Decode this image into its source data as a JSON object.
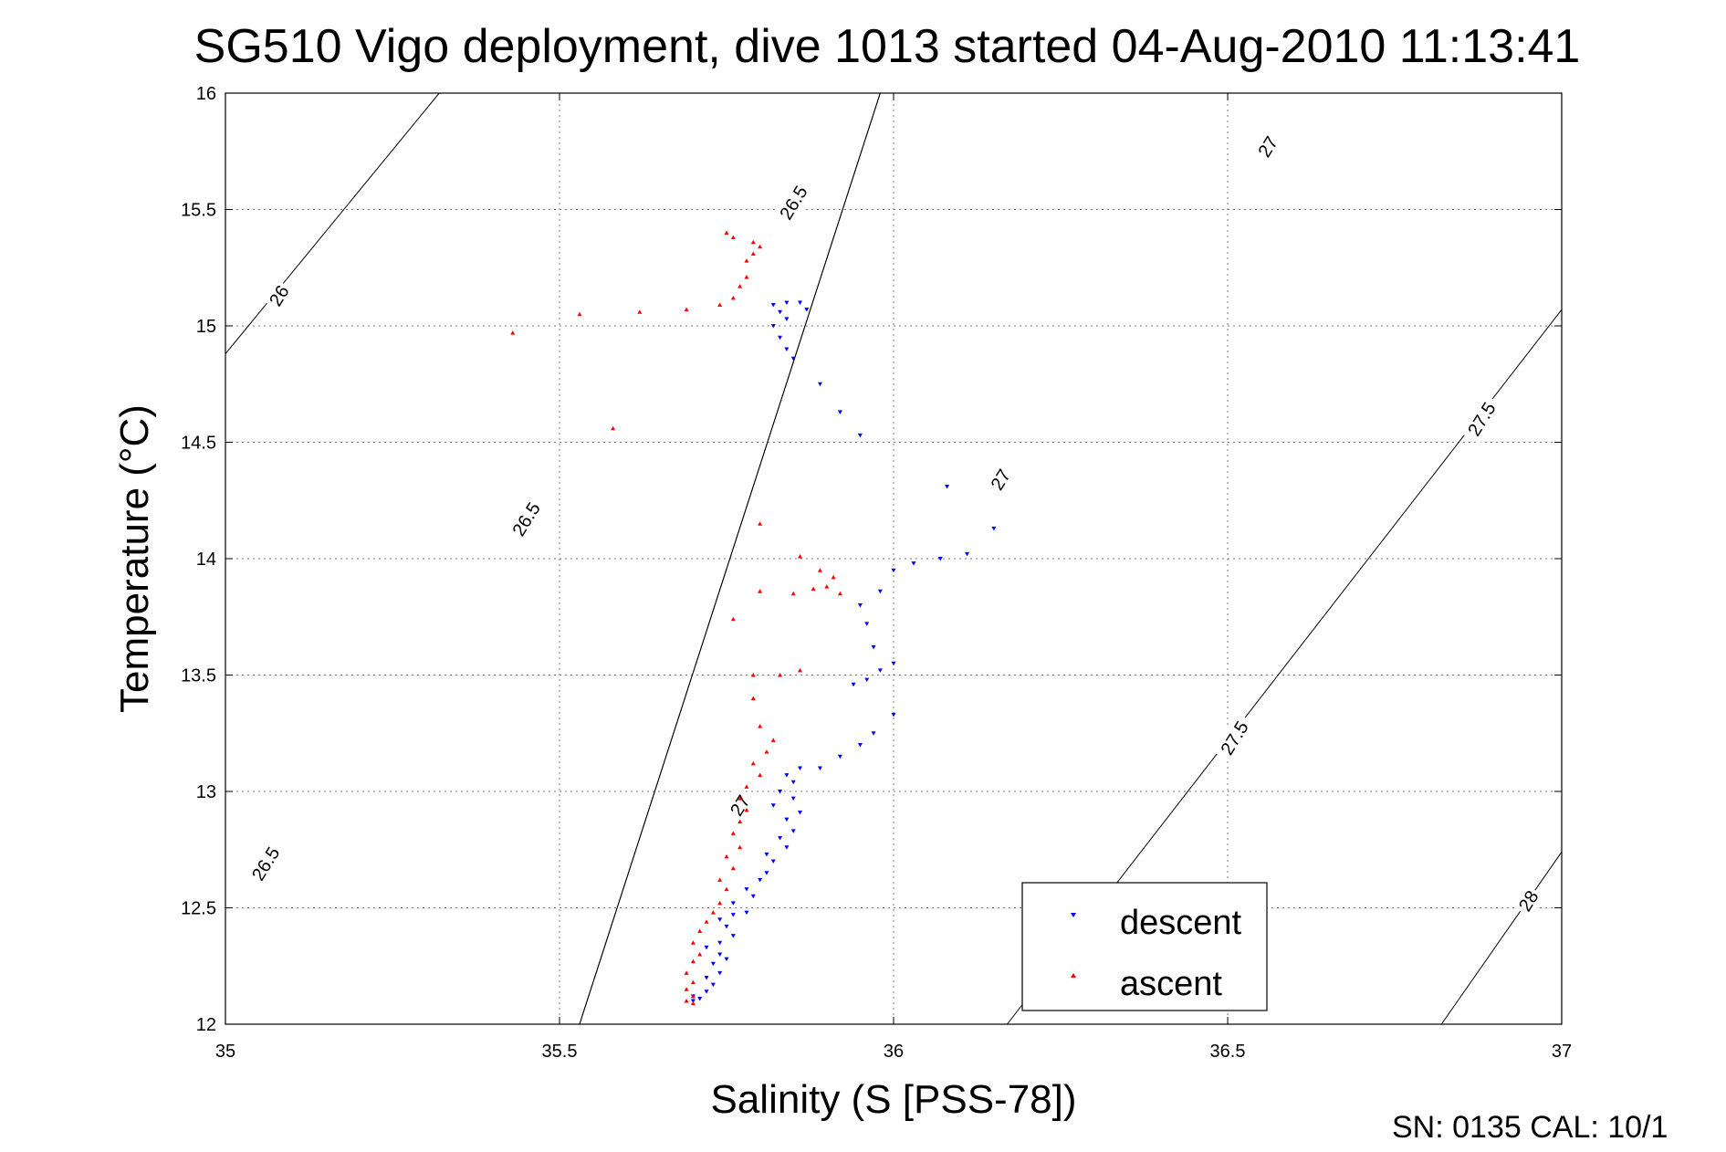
{
  "colors": {
    "descent": "#0000ff",
    "ascent": "#ff0000",
    "axis": "#000000",
    "grid": "#7a7a7a",
    "background": "#ffffff"
  },
  "footer": {
    "serial": "SN: 0135  CAL: 10/1"
  },
  "chart_data": {
    "type": "scatter",
    "title": "SG510 Vigo deployment, dive 1013 started 04-Aug-2010 11:13:41",
    "xlabel": "Salinity (S [PSS-78])",
    "ylabel": "Temperature (°C)",
    "xlim": [
      35,
      37
    ],
    "ylim": [
      12,
      16
    ],
    "xticks": [
      35,
      35.5,
      36,
      36.5,
      37
    ],
    "xtick_labels": [
      "35",
      "35.5",
      "36",
      "36.5",
      "37"
    ],
    "yticks": [
      12,
      12.5,
      13,
      13.5,
      14,
      14.5,
      15,
      15.5,
      16
    ],
    "ytick_labels": [
      "12",
      "12.5",
      "13",
      "13.5",
      "14",
      "14.5",
      "15",
      "15.5",
      "16"
    ],
    "grid": true,
    "legend": {
      "position": "bottom-right",
      "entries": [
        "descent",
        "ascent"
      ]
    },
    "density_contours": [
      {
        "label": "26",
        "points": [
          [
            35.0,
            14.88
          ],
          [
            35.32,
            16.0
          ]
        ]
      },
      {
        "label": "26.5",
        "points": [
          [
            35.53,
            12.0
          ],
          [
            35.98,
            16.0
          ]
        ]
      },
      {
        "label": "27",
        "points": [
          [
            35.53,
            12.0
          ],
          [
            35.98,
            16.0
          ]
        ]
      },
      {
        "label": "27.5",
        "points": [
          [
            36.17,
            12.0
          ],
          [
            37.0,
            15.07
          ]
        ]
      },
      {
        "label": "28",
        "points": [
          [
            36.82,
            12.0
          ],
          [
            37.0,
            12.74
          ]
        ]
      }
    ],
    "contour_labels": [
      {
        "text": "26",
        "s": 35.08,
        "t": 15.13,
        "angle": -58
      },
      {
        "text": "26.5",
        "s": 35.85,
        "t": 15.53,
        "angle": -58
      },
      {
        "text": "26.5",
        "s": 35.45,
        "t": 14.17,
        "angle": -58
      },
      {
        "text": "26.5",
        "s": 35.06,
        "t": 12.69,
        "angle": -58
      },
      {
        "text": "27",
        "s": 36.56,
        "t": 15.77,
        "angle": -58
      },
      {
        "text": "27",
        "s": 36.16,
        "t": 14.34,
        "angle": -58
      },
      {
        "text": "27",
        "s": 35.77,
        "t": 12.94,
        "angle": -58
      },
      {
        "text": "27.5",
        "s": 36.88,
        "t": 14.6,
        "angle": -58
      },
      {
        "text": "27.5",
        "s": 36.51,
        "t": 13.23,
        "angle": -58
      },
      {
        "text": "28",
        "s": 36.95,
        "t": 12.53,
        "angle": -58
      }
    ],
    "series": [
      {
        "name": "descent",
        "marker": "triangle-down",
        "color": "#0000ff",
        "points": [
          [
            35.7,
            12.1
          ],
          [
            35.71,
            12.11
          ],
          [
            35.7,
            12.12
          ],
          [
            35.72,
            12.14
          ],
          [
            35.73,
            12.17
          ],
          [
            35.72,
            12.2
          ],
          [
            35.74,
            12.22
          ],
          [
            35.73,
            12.26
          ],
          [
            35.75,
            12.28
          ],
          [
            35.74,
            12.3
          ],
          [
            35.72,
            12.33
          ],
          [
            35.74,
            12.35
          ],
          [
            35.76,
            12.38
          ],
          [
            35.75,
            12.42
          ],
          [
            35.74,
            12.45
          ],
          [
            35.76,
            12.47
          ],
          [
            35.78,
            12.48
          ],
          [
            35.76,
            12.52
          ],
          [
            35.79,
            12.55
          ],
          [
            35.78,
            12.58
          ],
          [
            35.8,
            12.62
          ],
          [
            35.81,
            12.65
          ],
          [
            35.82,
            12.7
          ],
          [
            35.81,
            12.73
          ],
          [
            35.84,
            12.76
          ],
          [
            35.83,
            12.8
          ],
          [
            35.85,
            12.83
          ],
          [
            35.84,
            12.88
          ],
          [
            35.86,
            12.91
          ],
          [
            35.82,
            12.94
          ],
          [
            35.85,
            12.97
          ],
          [
            35.83,
            13.0
          ],
          [
            35.85,
            13.04
          ],
          [
            35.84,
            13.07
          ],
          [
            35.86,
            13.1
          ],
          [
            35.89,
            13.1
          ],
          [
            35.92,
            13.15
          ],
          [
            35.95,
            13.2
          ],
          [
            35.97,
            13.25
          ],
          [
            36.0,
            13.33
          ],
          [
            35.94,
            13.46
          ],
          [
            35.96,
            13.48
          ],
          [
            35.98,
            13.52
          ],
          [
            36.0,
            13.55
          ],
          [
            35.97,
            13.62
          ],
          [
            35.96,
            13.72
          ],
          [
            35.95,
            13.8
          ],
          [
            35.98,
            13.86
          ],
          [
            36.0,
            13.95
          ],
          [
            36.03,
            13.98
          ],
          [
            36.07,
            14.0
          ],
          [
            36.11,
            14.02
          ],
          [
            36.15,
            14.13
          ],
          [
            36.08,
            14.31
          ],
          [
            35.95,
            14.53
          ],
          [
            35.92,
            14.63
          ],
          [
            35.89,
            14.75
          ],
          [
            35.85,
            14.86
          ],
          [
            35.84,
            14.9
          ],
          [
            35.83,
            14.95
          ],
          [
            35.82,
            15.0
          ],
          [
            35.84,
            15.03
          ],
          [
            35.83,
            15.06
          ],
          [
            35.82,
            15.09
          ],
          [
            35.84,
            15.1
          ],
          [
            35.86,
            15.1
          ],
          [
            35.87,
            15.07
          ]
        ]
      },
      {
        "name": "ascent",
        "marker": "triangle-up",
        "color": "#ff0000",
        "points": [
          [
            35.7,
            12.09
          ],
          [
            35.69,
            12.1
          ],
          [
            35.7,
            12.12
          ],
          [
            35.69,
            12.15
          ],
          [
            35.7,
            12.18
          ],
          [
            35.69,
            12.22
          ],
          [
            35.7,
            12.27
          ],
          [
            35.71,
            12.3
          ],
          [
            35.7,
            12.35
          ],
          [
            35.71,
            12.4
          ],
          [
            35.72,
            12.44
          ],
          [
            35.73,
            12.48
          ],
          [
            35.74,
            12.52
          ],
          [
            35.75,
            12.58
          ],
          [
            35.74,
            12.62
          ],
          [
            35.76,
            12.67
          ],
          [
            35.75,
            12.72
          ],
          [
            35.77,
            12.76
          ],
          [
            35.76,
            12.82
          ],
          [
            35.77,
            12.87
          ],
          [
            35.78,
            12.92
          ],
          [
            35.77,
            12.97
          ],
          [
            35.78,
            13.02
          ],
          [
            35.8,
            13.07
          ],
          [
            35.79,
            13.12
          ],
          [
            35.81,
            13.17
          ],
          [
            35.82,
            13.22
          ],
          [
            35.8,
            13.28
          ],
          [
            35.79,
            13.4
          ],
          [
            35.79,
            13.5
          ],
          [
            35.83,
            13.5
          ],
          [
            35.86,
            13.52
          ],
          [
            35.76,
            13.74
          ],
          [
            35.8,
            13.86
          ],
          [
            35.85,
            13.85
          ],
          [
            35.88,
            13.87
          ],
          [
            35.9,
            13.88
          ],
          [
            35.91,
            13.92
          ],
          [
            35.89,
            13.95
          ],
          [
            35.92,
            13.85
          ],
          [
            35.86,
            14.01
          ],
          [
            35.8,
            14.15
          ],
          [
            35.58,
            14.56
          ],
          [
            35.43,
            14.97
          ],
          [
            35.53,
            15.05
          ],
          [
            35.62,
            15.06
          ],
          [
            35.69,
            15.07
          ],
          [
            35.74,
            15.09
          ],
          [
            35.76,
            15.12
          ],
          [
            35.77,
            15.17
          ],
          [
            35.78,
            15.21
          ],
          [
            35.78,
            15.28
          ],
          [
            35.79,
            15.31
          ],
          [
            35.8,
            15.34
          ],
          [
            35.79,
            15.36
          ],
          [
            35.76,
            15.38
          ],
          [
            35.75,
            15.4
          ]
        ]
      }
    ]
  }
}
